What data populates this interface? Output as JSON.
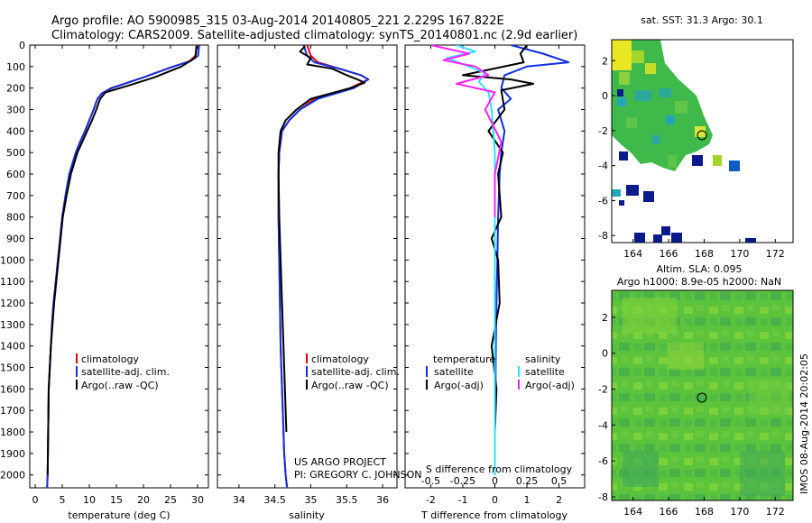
{
  "header": {
    "line1": "Argo profile: AO 5900985_315 03-Aug-2014 20140805_221 2.229S 167.822E",
    "line2": "Climatology: CARS2009. Satellite-adjusted climatology: synTS_20140801.nc (2.9d earlier)"
  },
  "credit": {
    "line1": "US ARGO PROJECT",
    "line2": "PI: GREGORY C. JOHNSON"
  },
  "stamp": "IMOS 08-Aug-2014 20:02:05",
  "colors": {
    "climatology": "#e00000",
    "satellite": "#1030e0",
    "argo": "#000000",
    "satellite_salinity": "#30e0ff",
    "argo_salinity": "#ff20ff"
  },
  "chart_data": [
    {
      "type": "line",
      "panel": "temperature",
      "xlabel": "temperature (deg C)",
      "xlim": [
        -1,
        32
      ],
      "xticks": [
        "0",
        "5",
        "10",
        "15",
        "20",
        "25",
        "30"
      ],
      "ylim": [
        2060,
        0
      ],
      "yticks": [
        "0",
        "100",
        "200",
        "300",
        "400",
        "500",
        "600",
        "700",
        "800",
        "900",
        "1000",
        "1100",
        "1200",
        "1300",
        "1400",
        "1500",
        "1600",
        "1700",
        "1800",
        "1900",
        "2000"
      ],
      "legend": [
        "climatology",
        "satellite-adj. clim.",
        "Argo(..raw -QC)"
      ],
      "series": [
        {
          "name": "climatology",
          "color": "red",
          "x": [
            29.8,
            29.6,
            28.5,
            25.5,
            20,
            14,
            12.3,
            11.5,
            10.8,
            10,
            9.2,
            8.3,
            7.5,
            6.3,
            5.6,
            5,
            4.6,
            4.2,
            3.8,
            3.4,
            3.1,
            2.9,
            2.7,
            2.5,
            2.4,
            2.3,
            2.2
          ],
          "y": [
            0,
            50,
            75,
            100,
            150,
            200,
            225,
            250,
            300,
            350,
            400,
            450,
            500,
            600,
            700,
            800,
            900,
            1000,
            1100,
            1200,
            1300,
            1400,
            1500,
            1600,
            1800,
            2000,
            2060
          ]
        },
        {
          "name": "satellite-adj. clim.",
          "color": "blue",
          "x": [
            30.3,
            30.1,
            28.6,
            25.5,
            20,
            14.2,
            12.3,
            11.5,
            10.8,
            10,
            9.2,
            8.3,
            7.5,
            6.3,
            5.6,
            5,
            4.6,
            4.2,
            3.8,
            3.4,
            3.1,
            2.9,
            2.7,
            2.5,
            2.4,
            2.3,
            2.2
          ],
          "y": [
            0,
            50,
            75,
            100,
            150,
            200,
            225,
            250,
            300,
            350,
            400,
            450,
            500,
            600,
            700,
            800,
            900,
            1000,
            1100,
            1200,
            1300,
            1400,
            1500,
            1600,
            1800,
            2000,
            2060
          ]
        },
        {
          "name": "Argo(..raw -QC)",
          "color": "black",
          "x": [
            29.8,
            29.7,
            29.5,
            27,
            22,
            17,
            13,
            12,
            11.3,
            10.5,
            9.6,
            8.7,
            7.8,
            6.6,
            5.8,
            5.1,
            4.7,
            4.3,
            3.9,
            3.5,
            3.2,
            2.9,
            2.7,
            2.5,
            2.4,
            2.3
          ],
          "y": [
            5,
            40,
            60,
            100,
            150,
            190,
            220,
            250,
            300,
            350,
            400,
            450,
            500,
            600,
            700,
            800,
            900,
            1000,
            1100,
            1200,
            1300,
            1400,
            1500,
            1600,
            1800,
            2000
          ]
        }
      ]
    },
    {
      "type": "line",
      "panel": "salinity",
      "xlabel": "salinity",
      "xlim": [
        33.7,
        36.2
      ],
      "xticks": [
        "34",
        "34.5",
        "35",
        "35.5",
        "36"
      ],
      "ylim": [
        2060,
        0
      ],
      "legend": [
        "climatology",
        "satellite-adj. clim.",
        "Argo(..raw -QC)"
      ],
      "series": [
        {
          "name": "climatology",
          "color": "red",
          "x": [
            34.95,
            35.0,
            35.1,
            35.4,
            35.7,
            35.8,
            35.55,
            35.05,
            34.85,
            34.7,
            34.6,
            34.56,
            34.55,
            34.55,
            34.56,
            34.57,
            34.58,
            34.6,
            34.62,
            34.63,
            34.65,
            34.67
          ],
          "y": [
            0,
            50,
            80,
            110,
            140,
            160,
            200,
            250,
            300,
            350,
            400,
            500,
            600,
            800,
            1000,
            1200,
            1400,
            1600,
            1800,
            1900,
            2000,
            2060
          ]
        },
        {
          "name": "satellite-adj. clim.",
          "color": "blue",
          "x": [
            34.9,
            34.95,
            35.05,
            35.4,
            35.7,
            35.8,
            35.6,
            35.1,
            34.85,
            34.7,
            34.6,
            34.56,
            34.55,
            34.55,
            34.56,
            34.57,
            34.58,
            34.6,
            34.62,
            34.63,
            34.65,
            34.67
          ],
          "y": [
            0,
            50,
            80,
            110,
            140,
            160,
            200,
            250,
            300,
            350,
            400,
            500,
            600,
            800,
            1000,
            1200,
            1400,
            1600,
            1800,
            1900,
            2000,
            2060
          ]
        },
        {
          "name": "Argo(..raw -QC)",
          "color": "black",
          "x": [
            34.92,
            34.85,
            35.0,
            34.95,
            35.3,
            35.5,
            35.65,
            35.75,
            35.55,
            35.0,
            34.8,
            34.65,
            34.58,
            34.55,
            34.55,
            34.56,
            34.58,
            34.6,
            34.62,
            34.64,
            34.66
          ],
          "y": [
            5,
            30,
            60,
            90,
            110,
            140,
            160,
            175,
            200,
            250,
            300,
            350,
            400,
            500,
            600,
            800,
            1000,
            1200,
            1400,
            1600,
            1800
          ]
        }
      ]
    },
    {
      "type": "line",
      "panel": "differences",
      "xlabel": "T difference from climatology",
      "xlabel2": "S difference from climatology",
      "xlim": [
        -2.8,
        2.8
      ],
      "xticks": [
        "-2",
        "-1",
        "0",
        "1",
        "2"
      ],
      "xticks_s": [
        "-0.5",
        "-0.25",
        "0",
        "0.25",
        "0.5"
      ],
      "ylim": [
        2060,
        0
      ],
      "legend_headers": [
        "temperature",
        "salinity"
      ],
      "legend": [
        "satellite",
        "Argo(-adj)",
        "satellite",
        "Argo(-adj)"
      ],
      "series": [
        {
          "name": "satellite",
          "color": "blue",
          "x": [
            0.5,
            1.5,
            2.3,
            1.0,
            0.3,
            0.2,
            0.5,
            0.1,
            0.3,
            0.2,
            0.15,
            0.1,
            0.08,
            0.05,
            0.03,
            0.02,
            0.0,
            0.0
          ],
          "y": [
            0,
            40,
            80,
            100,
            140,
            200,
            250,
            300,
            400,
            500,
            600,
            800,
            1000,
            1200,
            1400,
            1600,
            1800,
            2000
          ]
        },
        {
          "name": "Argo(-adj)",
          "color": "black",
          "x": [
            1.0,
            0.8,
            0.9,
            -1.0,
            0.5,
            1.2,
            0.2,
            0.3,
            -0.2,
            0.25,
            0.1,
            0.2,
            -0.1,
            0.1,
            0.15,
            -0.1,
            0.05,
            0.0
          ],
          "y": [
            0,
            40,
            80,
            140,
            160,
            180,
            210,
            300,
            400,
            500,
            600,
            800,
            900,
            1000,
            1200,
            1400,
            1600,
            1800
          ]
        },
        {
          "name": "satellite",
          "color": "cyan",
          "x": [
            -1.2,
            -0.6,
            -1.5,
            -0.8,
            -0.3,
            -0.5,
            -0.2,
            -0.1,
            0.0,
            0.0,
            0.0,
            0.0
          ],
          "y": [
            0,
            30,
            60,
            100,
            130,
            170,
            220,
            300,
            500,
            800,
            1400,
            2000
          ]
        },
        {
          "name": "Argo(-adj)",
          "color": "magenta",
          "x": [
            -2.0,
            -0.8,
            -1.6,
            -0.6,
            -0.2,
            -1.2,
            0.0,
            -0.3,
            0.2,
            0.0,
            0.0
          ],
          "y": [
            0,
            40,
            70,
            100,
            140,
            180,
            220,
            300,
            450,
            600,
            800
          ]
        }
      ]
    }
  ],
  "maps": [
    {
      "title": "sat. SST: 31.3  Argo: 30.1",
      "xticks": [
        "164",
        "166",
        "168",
        "170",
        "172"
      ],
      "yticks": [
        "2",
        "0",
        "-2",
        "-4",
        "-6",
        "-8"
      ],
      "marker": {
        "lon": 167.822,
        "lat": -2.229
      }
    },
    {
      "title1": "Altim. SLA: 0.095",
      "title2": "Argo h1000: 8.9e-05 h2000: NaN",
      "xticks": [
        "164",
        "166",
        "168",
        "170",
        "172"
      ],
      "yticks": [
        "2",
        "0",
        "-2",
        "-4",
        "-6",
        "-8"
      ],
      "marker": {
        "lon": 167.822,
        "lat": -2.229
      }
    }
  ]
}
